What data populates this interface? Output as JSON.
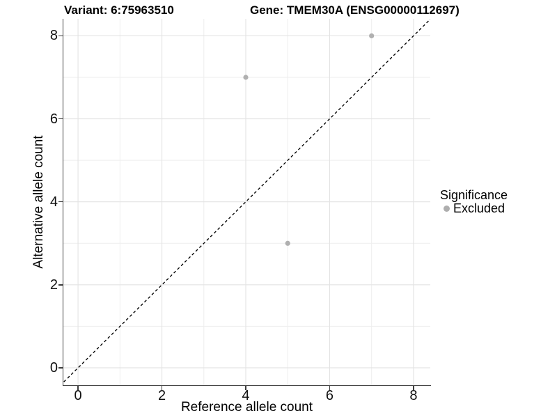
{
  "titles": {
    "variant": "Variant: 6:75963510",
    "gene": "Gene: TMEM30A (ENSG00000112697)"
  },
  "legend": {
    "title": "Significance",
    "items": [
      {
        "label": "Excluded",
        "color": "#aeaeae"
      }
    ]
  },
  "colors": {
    "axis_line": "#3c3c3c",
    "major_grid": "#e3e3e3",
    "minor_grid": "#eeeeee",
    "identity_line": "#000000",
    "point": "#b0b0b0",
    "tick_text": "#111111"
  },
  "chart_data": {
    "type": "scatter",
    "title_left": "Variant: 6:75963510",
    "title_right": "Gene: TMEM30A (ENSG00000112697)",
    "xlabel": "Reference allele count",
    "ylabel": "Alternative allele count",
    "xlim": [
      -0.35,
      8.4
    ],
    "ylim": [
      -0.42,
      8.41
    ],
    "x_ticks": [
      0,
      2,
      4,
      6,
      8
    ],
    "y_ticks": [
      0,
      2,
      4,
      6,
      8
    ],
    "x_minor_gridlines": [
      1,
      3,
      5,
      7
    ],
    "y_minor_gridlines": [
      1,
      3,
      5,
      7
    ],
    "grid": true,
    "legend_position": "right",
    "legend_title": "Significance",
    "series": [
      {
        "name": "Excluded",
        "color": "#b0b0b0",
        "points": [
          [
            4,
            7
          ],
          [
            7,
            8
          ],
          [
            5,
            3
          ]
        ]
      }
    ],
    "reference_line": {
      "type": "identity y=x",
      "style": "dashed",
      "color": "#000000"
    }
  }
}
